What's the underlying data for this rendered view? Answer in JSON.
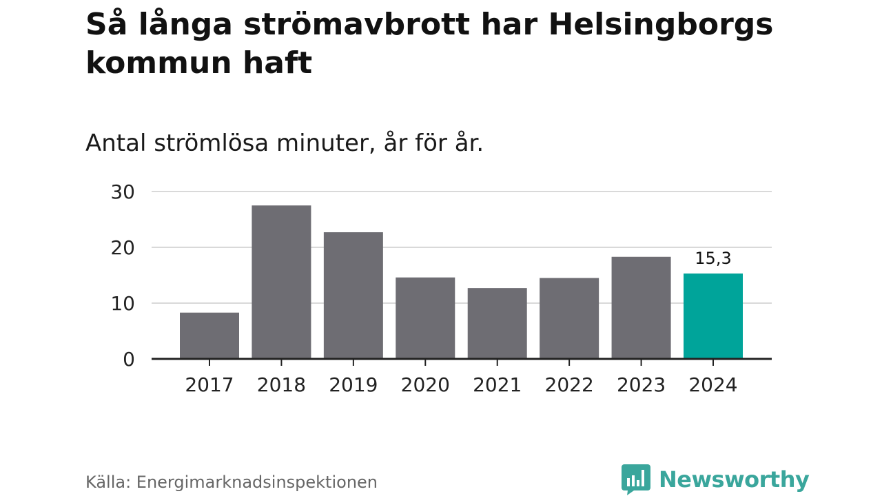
{
  "header": {
    "title": "Så långa strömavbrott har Helsingborgs kommun haft",
    "subtitle": "Antal strömlösa minuter, år för år."
  },
  "footer": {
    "source": "Källa: Energimarknadsinspektionen",
    "brand": "Newsworthy",
    "brand_icon": "bar-chart-speech-bubble-icon"
  },
  "colors": {
    "bar": "#6e6d73",
    "highlight": "#00a49a",
    "grid": "#d9d9d9",
    "axis": "#222222",
    "brand": "#3aa69c"
  },
  "chart_data": {
    "type": "bar",
    "categories": [
      "2017",
      "2018",
      "2019",
      "2020",
      "2021",
      "2022",
      "2023",
      "2024"
    ],
    "values": [
      8.3,
      27.5,
      22.7,
      14.6,
      12.7,
      14.5,
      18.3,
      15.3
    ],
    "highlight_index": 7,
    "data_labels": [
      {
        "category": "2024",
        "text": "15,3"
      }
    ],
    "yticks": [
      0,
      10,
      20,
      30
    ],
    "ylim": [
      0,
      30
    ],
    "grid": true,
    "legend": "none"
  }
}
